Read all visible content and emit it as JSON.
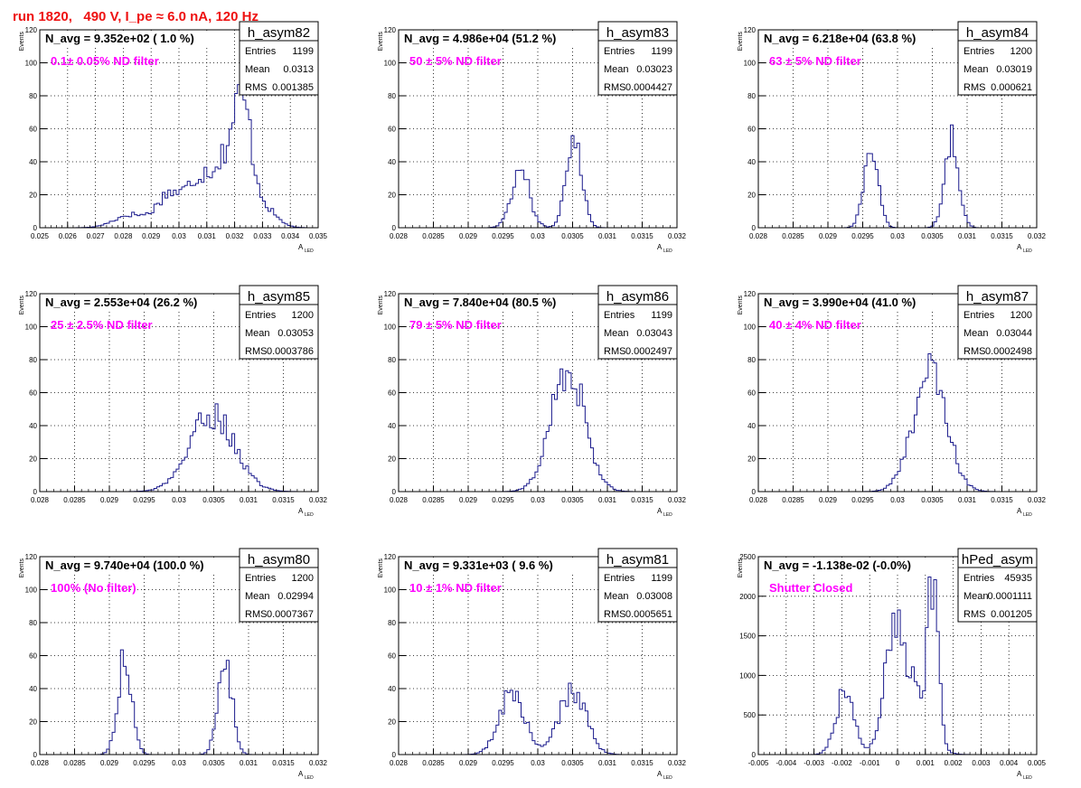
{
  "run_title": "run 1820,   490 V, I_pe ≈ 6.0 nA, 120 Hz",
  "colors": {
    "hist_line": "#1a1a8c",
    "annotation": "#ff00ff",
    "title": "#ee1111",
    "axis": "#000000"
  },
  "chart_data": [
    {
      "type": "bar",
      "name": "h_asym82",
      "title": "h_asym82",
      "navg_label": "N_avg = 9.352e+02 ( 1.0 %)",
      "annotation": "0.1± 0.05% ND filter",
      "stats": {
        "entries_label": "Entries",
        "entries": "1199",
        "mean_label": "Mean",
        "mean": "0.0313",
        "rms_label": "RMS",
        "rms": "0.001385"
      },
      "xlabel": "A",
      "xlabel_sub": "LED",
      "ylabel": "Events",
      "xlim": [
        0.025,
        0.035
      ],
      "ylim": [
        0,
        120
      ],
      "xticks": [
        "0.025",
        "0.026",
        "0.027",
        "0.028",
        "0.029",
        "0.03",
        "0.031",
        "0.032",
        "0.033",
        "0.034",
        "0.035"
      ],
      "yticks": [
        "0",
        "20",
        "40",
        "60",
        "80",
        "100",
        "120"
      ],
      "grid": true,
      "peaks": [
        {
          "center": 0.0283,
          "sigma": 0.0006,
          "height": 8
        },
        {
          "center": 0.0296,
          "sigma": 0.0004,
          "height": 18
        },
        {
          "center": 0.0307,
          "sigma": 0.0005,
          "height": 28
        },
        {
          "center": 0.0318,
          "sigma": 0.0005,
          "height": 40
        },
        {
          "center": 0.0323,
          "sigma": 0.0003,
          "height": 48
        },
        {
          "center": 0.0329,
          "sigma": 0.0005,
          "height": 14
        }
      ]
    },
    {
      "type": "bar",
      "name": "h_asym83",
      "title": "h_asym83",
      "navg_label": "N_avg = 4.986e+04 (51.2 %)",
      "annotation": "50 ± 5% ND filter",
      "stats": {
        "entries_label": "Entries",
        "entries": "1199",
        "mean_label": "Mean",
        "mean": "0.03023",
        "rms_label": "RMS",
        "rms": "0.0004427"
      },
      "xlabel": "A",
      "xlabel_sub": "LED",
      "ylabel": "Events",
      "xlim": [
        0.028,
        0.032
      ],
      "ylim": [
        0,
        120
      ],
      "xticks": [
        "0.028",
        "0.0285",
        "0.029",
        "0.0295",
        "0.03",
        "0.0305",
        "0.031",
        "0.0315",
        "0.032"
      ],
      "yticks": [
        "0",
        "20",
        "40",
        "60",
        "80",
        "100",
        "120"
      ],
      "grid": true,
      "peaks": [
        {
          "center": 0.02975,
          "sigma": 0.00013,
          "height": 35
        },
        {
          "center": 0.03052,
          "sigma": 0.00011,
          "height": 58
        }
      ]
    },
    {
      "type": "bar",
      "name": "h_asym84",
      "title": "h_asym84",
      "navg_label": "N_avg = 6.218e+04 (63.8 %)",
      "annotation": "63 ± 5% ND filter",
      "stats": {
        "entries_label": "Entries",
        "entries": "1200",
        "mean_label": "Mean",
        "mean": "0.03019",
        "rms_label": "RMS",
        "rms": "0.000621"
      },
      "xlabel": "A",
      "xlabel_sub": "LED",
      "ylabel": "Events",
      "xlim": [
        0.028,
        0.032
      ],
      "ylim": [
        0,
        120
      ],
      "xticks": [
        "0.028",
        "0.0285",
        "0.029",
        "0.0295",
        "0.03",
        "0.0305",
        "0.031",
        "0.0315",
        "0.032"
      ],
      "yticks": [
        "0",
        "20",
        "40",
        "60",
        "80",
        "100",
        "120"
      ],
      "grid": true,
      "peaks": [
        {
          "center": 0.02962,
          "sigma": 0.0001,
          "height": 50
        },
        {
          "center": 0.03078,
          "sigma": 0.0001,
          "height": 53
        }
      ]
    },
    {
      "type": "bar",
      "name": "h_asym85",
      "title": "h_asym85",
      "navg_label": "N_avg = 2.553e+04 (26.2 %)",
      "annotation": "25 ± 2.5% ND filter",
      "stats": {
        "entries_label": "Entries",
        "entries": "1200",
        "mean_label": "Mean",
        "mean": "0.03053",
        "rms_label": "RMS",
        "rms": "0.0003786"
      },
      "xlabel": "A",
      "xlabel_sub": "LED",
      "ylabel": "Events",
      "xlim": [
        0.028,
        0.032
      ],
      "ylim": [
        0,
        120
      ],
      "xticks": [
        "0.028",
        "0.0285",
        "0.029",
        "0.0295",
        "0.03",
        "0.0305",
        "0.031",
        "0.0315",
        "0.032"
      ],
      "yticks": [
        "0",
        "20",
        "40",
        "60",
        "80",
        "100",
        "120"
      ],
      "grid": true,
      "peaks": [
        {
          "center": 0.03048,
          "sigma": 0.00032,
          "height": 47
        }
      ]
    },
    {
      "type": "bar",
      "name": "h_asym86",
      "title": "h_asym86",
      "navg_label": "N_avg = 7.840e+04 (80.5 %)",
      "annotation": "79 ± 5% ND filter",
      "stats": {
        "entries_label": "Entries",
        "entries": "1199",
        "mean_label": "Mean",
        "mean": "0.03043",
        "rms_label": "RMS",
        "rms": "0.0002497"
      },
      "xlabel": "A",
      "xlabel_sub": "LED",
      "ylabel": "Events",
      "xlim": [
        0.028,
        0.032
      ],
      "ylim": [
        0,
        120
      ],
      "xticks": [
        "0.028",
        "0.0285",
        "0.029",
        "0.0295",
        "0.03",
        "0.0305",
        "0.031",
        "0.0315",
        "0.032"
      ],
      "yticks": [
        "0",
        "20",
        "40",
        "60",
        "80",
        "100",
        "120"
      ],
      "grid": true,
      "peaks": [
        {
          "center": 0.03043,
          "sigma": 0.00024,
          "height": 76
        }
      ]
    },
    {
      "type": "bar",
      "name": "h_asym87",
      "title": "h_asym87",
      "navg_label": "N_avg = 3.990e+04 (41.0 %)",
      "annotation": "40 ± 4% ND filter",
      "stats": {
        "entries_label": "Entries",
        "entries": "1200",
        "mean_label": "Mean",
        "mean": "0.03044",
        "rms_label": "RMS",
        "rms": "0.0002498"
      },
      "xlabel": "A",
      "xlabel_sub": "LED",
      "ylabel": "Events",
      "xlim": [
        0.028,
        0.032
      ],
      "ylim": [
        0,
        120
      ],
      "xticks": [
        "0.028",
        "0.0285",
        "0.029",
        "0.0295",
        "0.03",
        "0.0305",
        "0.031",
        "0.0315",
        "0.032"
      ],
      "yticks": [
        "0",
        "20",
        "40",
        "60",
        "80",
        "100",
        "120"
      ],
      "grid": true,
      "peaks": [
        {
          "center": 0.03046,
          "sigma": 0.00024,
          "height": 72
        }
      ]
    },
    {
      "type": "bar",
      "name": "h_asym80",
      "title": "h_asym80",
      "navg_label": "N_avg = 9.740e+04 (100.0 %)",
      "annotation": "100% (No filter)",
      "stats": {
        "entries_label": "Entries",
        "entries": "1200",
        "mean_label": "Mean",
        "mean": "0.02994",
        "rms_label": "RMS",
        "rms": "0.0007367"
      },
      "xlabel": "A",
      "xlabel_sub": "LED",
      "ylabel": "Events",
      "xlim": [
        0.028,
        0.032
      ],
      "ylim": [
        0,
        120
      ],
      "xticks": [
        "0.028",
        "0.0285",
        "0.029",
        "0.0295",
        "0.03",
        "0.0305",
        "0.031",
        "0.0315",
        "0.032"
      ],
      "yticks": [
        "0",
        "20",
        "40",
        "60",
        "80",
        "100",
        "120"
      ],
      "grid": true,
      "peaks": [
        {
          "center": 0.02922,
          "sigma": 0.0001,
          "height": 58
        },
        {
          "center": 0.03066,
          "sigma": 0.0001,
          "height": 58
        }
      ]
    },
    {
      "type": "bar",
      "name": "h_asym81",
      "title": "h_asym81",
      "navg_label": "N_avg = 9.331e+03 ( 9.6 %)",
      "annotation": "10 ± 1% ND filter",
      "stats": {
        "entries_label": "Entries",
        "entries": "1199",
        "mean_label": "Mean",
        "mean": "0.03008",
        "rms_label": "RMS",
        "rms": "0.0005651"
      },
      "xlabel": "A",
      "xlabel_sub": "LED",
      "ylabel": "Events",
      "xlim": [
        0.028,
        0.032
      ],
      "ylim": [
        0,
        120
      ],
      "xticks": [
        "0.028",
        "0.0285",
        "0.029",
        "0.0295",
        "0.03",
        "0.0305",
        "0.031",
        "0.0315",
        "0.032"
      ],
      "yticks": [
        "0",
        "20",
        "40",
        "60",
        "80",
        "100",
        "120"
      ],
      "grid": true,
      "peaks": [
        {
          "center": 0.02963,
          "sigma": 0.00018,
          "height": 38
        },
        {
          "center": 0.0305,
          "sigma": 0.00019,
          "height": 39
        }
      ]
    },
    {
      "type": "bar",
      "name": "hPed_asym",
      "title": "hPed_asym",
      "navg_label": "N_avg = -1.138e-02 (-0.0%)",
      "annotation": "Shutter Closed",
      "stats": {
        "entries_label": "Entries",
        "entries": "45935",
        "mean_label": "Mean",
        "mean": "0.0001111",
        "rms_label": "RMS",
        "rms": "0.001205"
      },
      "xlabel": "A",
      "xlabel_sub": "LED",
      "ylabel": "Events",
      "xlim": [
        -0.005,
        0.005
      ],
      "ylim": [
        0,
        2500
      ],
      "xticks": [
        "-0.005",
        "-0.004",
        "-0.003",
        "-0.002",
        "-0.001",
        "0",
        "0.001",
        "0.002",
        "0.003",
        "0.004",
        "0.005"
      ],
      "yticks": [
        "0",
        "500",
        "1000",
        "1500",
        "2000",
        "2500"
      ],
      "grid": true,
      "peaks": [
        {
          "center": -0.0019,
          "sigma": 0.00032,
          "height": 780
        },
        {
          "center": -0.0002,
          "sigma": 0.00025,
          "height": 950
        },
        {
          "center": 0.0003,
          "sigma": 0.0006,
          "height": 1050
        },
        {
          "center": 0.00128,
          "sigma": 0.00018,
          "height": 2000
        }
      ]
    }
  ]
}
